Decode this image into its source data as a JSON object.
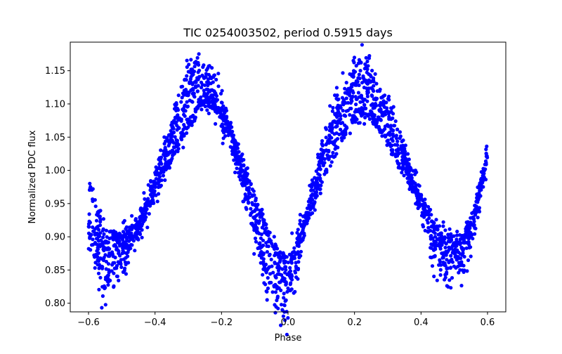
{
  "chart_data": {
    "type": "scatter",
    "title": "TIC 0254003502, period 0.5915 days",
    "xlabel": "Phase",
    "ylabel": "Normalized PDC flux",
    "xlim": [
      -0.655,
      0.655
    ],
    "ylim": [
      0.787,
      1.193
    ],
    "xticks": [
      -0.6,
      -0.4,
      -0.2,
      0.0,
      0.2,
      0.4,
      0.6
    ],
    "xtick_labels": [
      "−0.6",
      "−0.4",
      "−0.2",
      "0.0",
      "0.2",
      "0.4",
      "0.6"
    ],
    "yticks": [
      0.8,
      0.85,
      0.9,
      0.95,
      1.0,
      1.05,
      1.1,
      1.15
    ],
    "ytick_labels": [
      "0.80",
      "0.85",
      "0.90",
      "0.95",
      "1.00",
      "1.05",
      "1.10",
      "1.15"
    ],
    "grid": false,
    "marker_color": "#0000ff",
    "series": [
      {
        "x": [
          -0.6,
          -0.57,
          -0.55,
          -0.53,
          -0.5,
          -0.47,
          -0.44,
          -0.4,
          -0.35,
          -0.3,
          -0.27,
          -0.24,
          -0.2,
          -0.15,
          -0.1,
          -0.07,
          -0.04,
          -0.02,
          0.0,
          0.02,
          0.05,
          0.1,
          0.15,
          0.2,
          0.22,
          0.25,
          0.3,
          0.35,
          0.4,
          0.43,
          0.46,
          0.48,
          0.5,
          0.53,
          0.56,
          0.58,
          0.6
        ],
        "y": [
          0.91,
          0.87,
          0.86,
          0.86,
          0.87,
          0.89,
          0.93,
          0.98,
          1.06,
          1.12,
          1.14,
          1.13,
          1.09,
          1.01,
          0.92,
          0.86,
          0.83,
          0.82,
          0.83,
          0.86,
          0.92,
          1.02,
          1.09,
          1.13,
          1.14,
          1.13,
          1.08,
          1.02,
          0.95,
          0.9,
          0.87,
          0.86,
          0.86,
          0.88,
          0.92,
          0.97,
          1.02
        ]
      },
      {
        "x": [
          -0.6,
          -0.58,
          -0.55,
          -0.52,
          -0.5,
          -0.45,
          -0.4,
          -0.35,
          -0.3,
          -0.25,
          -0.22,
          -0.18,
          -0.15,
          -0.1,
          -0.05,
          -0.02,
          0.0,
          0.03,
          0.08,
          0.12,
          0.16,
          0.2,
          0.23,
          0.27,
          0.3,
          0.35,
          0.4,
          0.45,
          0.5,
          0.53,
          0.55,
          0.57,
          0.59,
          0.6
        ],
        "y": [
          0.99,
          0.95,
          0.91,
          0.9,
          0.9,
          0.92,
          0.96,
          1.02,
          1.07,
          1.1,
          1.1,
          1.07,
          1.03,
          0.96,
          0.89,
          0.87,
          0.87,
          0.89,
          0.95,
          1.01,
          1.05,
          1.08,
          1.09,
          1.07,
          1.04,
          1.0,
          0.95,
          0.91,
          0.89,
          0.9,
          0.92,
          0.96,
          1.0,
          1.03
        ]
      }
    ]
  }
}
